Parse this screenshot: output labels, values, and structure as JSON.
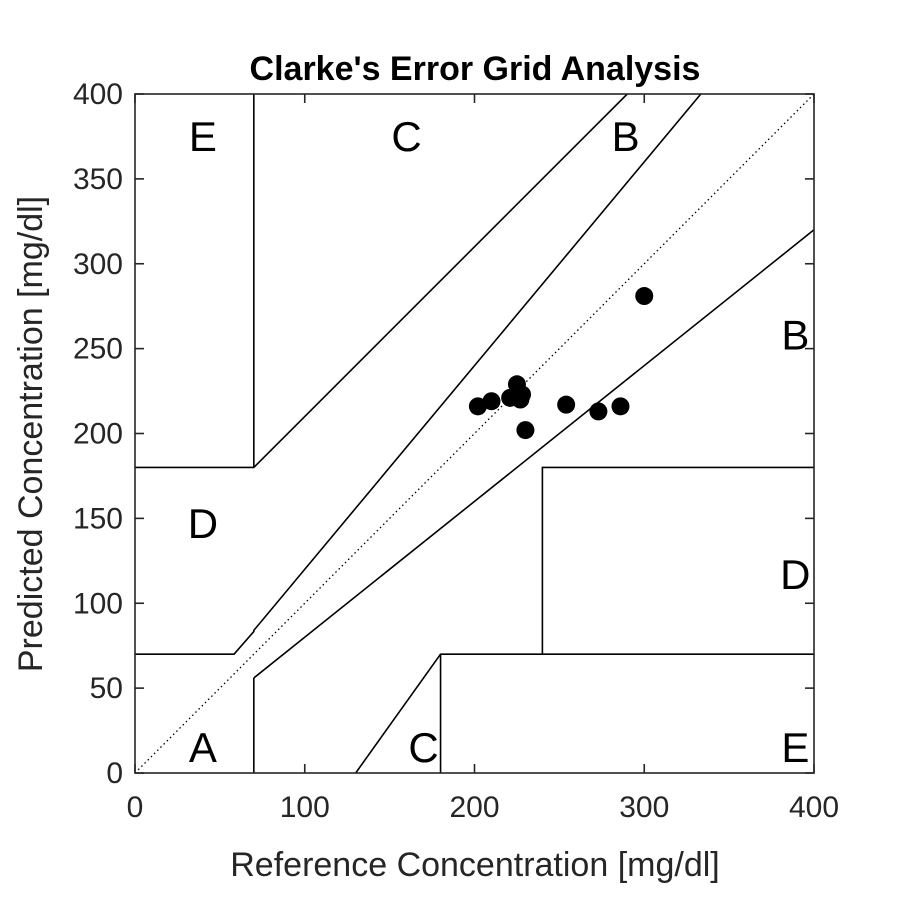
{
  "chart_data": {
    "type": "scatter",
    "title": "Clarke's Error Grid Analysis",
    "xlabel": "Reference Concentration [mg/dl]",
    "ylabel": "Predicted Concentration [mg/dl]",
    "xlim": [
      0,
      400
    ],
    "ylim": [
      0,
      400
    ],
    "xticks": [
      "0",
      "100",
      "200",
      "300",
      "400"
    ],
    "yticks": [
      "0",
      "50",
      "100",
      "150",
      "200",
      "250",
      "300",
      "350",
      "400"
    ],
    "grid": false,
    "identity_line": {
      "style": "dotted",
      "from": [
        0,
        0
      ],
      "to": [
        400,
        400
      ]
    },
    "zone_lines": [
      {
        "points": [
          [
            70,
            400
          ],
          [
            70,
            180
          ]
        ]
      },
      {
        "points": [
          [
            0,
            180
          ],
          [
            70,
            180
          ],
          [
            290,
            400
          ]
        ]
      },
      {
        "points": [
          [
            0,
            70
          ],
          [
            58.33,
            70
          ],
          [
            70,
            83.33
          ],
          [
            70,
            84
          ],
          [
            333.33,
            400
          ]
        ]
      },
      {
        "points": [
          [
            70,
            56
          ],
          [
            400,
            320
          ]
        ]
      },
      {
        "points": [
          [
            70,
            0
          ],
          [
            70,
            56
          ]
        ]
      },
      {
        "points": [
          [
            130,
            0
          ],
          [
            180,
            70
          ],
          [
            400,
            70
          ]
        ]
      },
      {
        "points": [
          [
            180,
            0
          ],
          [
            180,
            70
          ]
        ]
      },
      {
        "points": [
          [
            240,
            70
          ],
          [
            240,
            180
          ],
          [
            400,
            180
          ]
        ]
      }
    ],
    "zone_labels": [
      {
        "text": "E",
        "x": 40,
        "y": 375
      },
      {
        "text": "C",
        "x": 160,
        "y": 375
      },
      {
        "text": "B",
        "x": 289,
        "y": 375
      },
      {
        "text": "B",
        "x": 389,
        "y": 258
      },
      {
        "text": "D",
        "x": 40,
        "y": 147
      },
      {
        "text": "D",
        "x": 389,
        "y": 117
      },
      {
        "text": "A",
        "x": 40,
        "y": 15
      },
      {
        "text": "C",
        "x": 170,
        "y": 15
      },
      {
        "text": "E",
        "x": 389,
        "y": 15
      }
    ],
    "series": [
      {
        "points": [
          [
            202,
            216
          ],
          [
            210,
            219
          ],
          [
            221,
            221
          ],
          [
            225,
            229
          ],
          [
            227,
            220
          ],
          [
            228,
            223
          ],
          [
            230,
            202
          ],
          [
            254,
            217
          ],
          [
            273,
            213
          ],
          [
            286,
            216
          ],
          [
            300,
            281
          ]
        ]
      }
    ]
  }
}
